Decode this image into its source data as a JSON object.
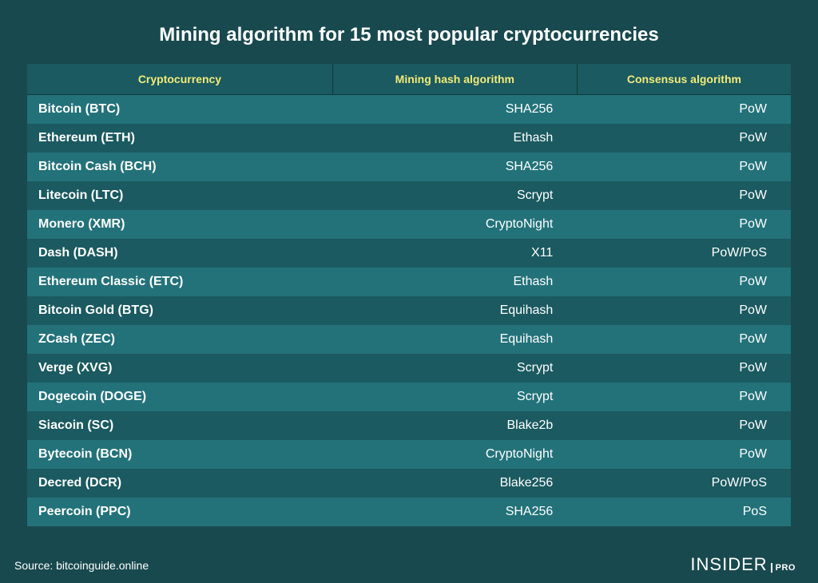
{
  "title": "Mining algorithm for 15 most popular cryptocurrencies",
  "source_label": "Source: bitcoinguide.online",
  "brand": {
    "name": "INSIDER",
    "suffix": "PRO"
  },
  "colors": {
    "background": "#18494e",
    "row_odd": "#23727a",
    "row_even": "#1a5a60",
    "header_bg": "#1a5a60",
    "header_text": "#f2ea79",
    "text": "#ffffff",
    "border": "#0f3a3e"
  },
  "table": {
    "type": "table",
    "columns": [
      "Cryptocurrency",
      "Mining hash algorithm",
      "Consensus algorithm"
    ],
    "column_align": [
      "left",
      "right",
      "right"
    ],
    "column_widths_pct": [
      40,
      32,
      28
    ],
    "header_fontsize": 14,
    "cell_fontsize": 16,
    "rows": [
      {
        "name": "Bitcoin (BTC)",
        "hash": "SHA256",
        "consensus": "PoW"
      },
      {
        "name": "Ethereum (ETH)",
        "hash": "Ethash",
        "consensus": "PoW"
      },
      {
        "name": "Bitcoin Cash (BCH)",
        "hash": "SHA256",
        "consensus": "PoW"
      },
      {
        "name": "Litecoin (LTC)",
        "hash": "Scrypt",
        "consensus": "PoW"
      },
      {
        "name": "Monero (XMR)",
        "hash": "CryptoNight",
        "consensus": "PoW"
      },
      {
        "name": "Dash (DASH)",
        "hash": "X11",
        "consensus": "PoW/PoS"
      },
      {
        "name": "Ethereum Classic (ETC)",
        "hash": "Ethash",
        "consensus": "PoW"
      },
      {
        "name": "Bitcoin Gold (BTG)",
        "hash": "Equihash",
        "consensus": "PoW"
      },
      {
        "name": "ZCash (ZEC)",
        "hash": "Equihash",
        "consensus": "PoW"
      },
      {
        "name": "Verge (XVG)",
        "hash": "Scrypt",
        "consensus": "PoW"
      },
      {
        "name": "Dogecoin (DOGE)",
        "hash": "Scrypt",
        "consensus": "PoW"
      },
      {
        "name": "Siacoin (SC)",
        "hash": "Blake2b",
        "consensus": "PoW"
      },
      {
        "name": "Bytecoin (BCN)",
        "hash": "CryptoNight",
        "consensus": "PoW"
      },
      {
        "name": "Decred (DCR)",
        "hash": "Blake256",
        "consensus": "PoW/PoS"
      },
      {
        "name": "Peercoin (PPC)",
        "hash": "SHA256",
        "consensus": "PoS"
      }
    ]
  }
}
